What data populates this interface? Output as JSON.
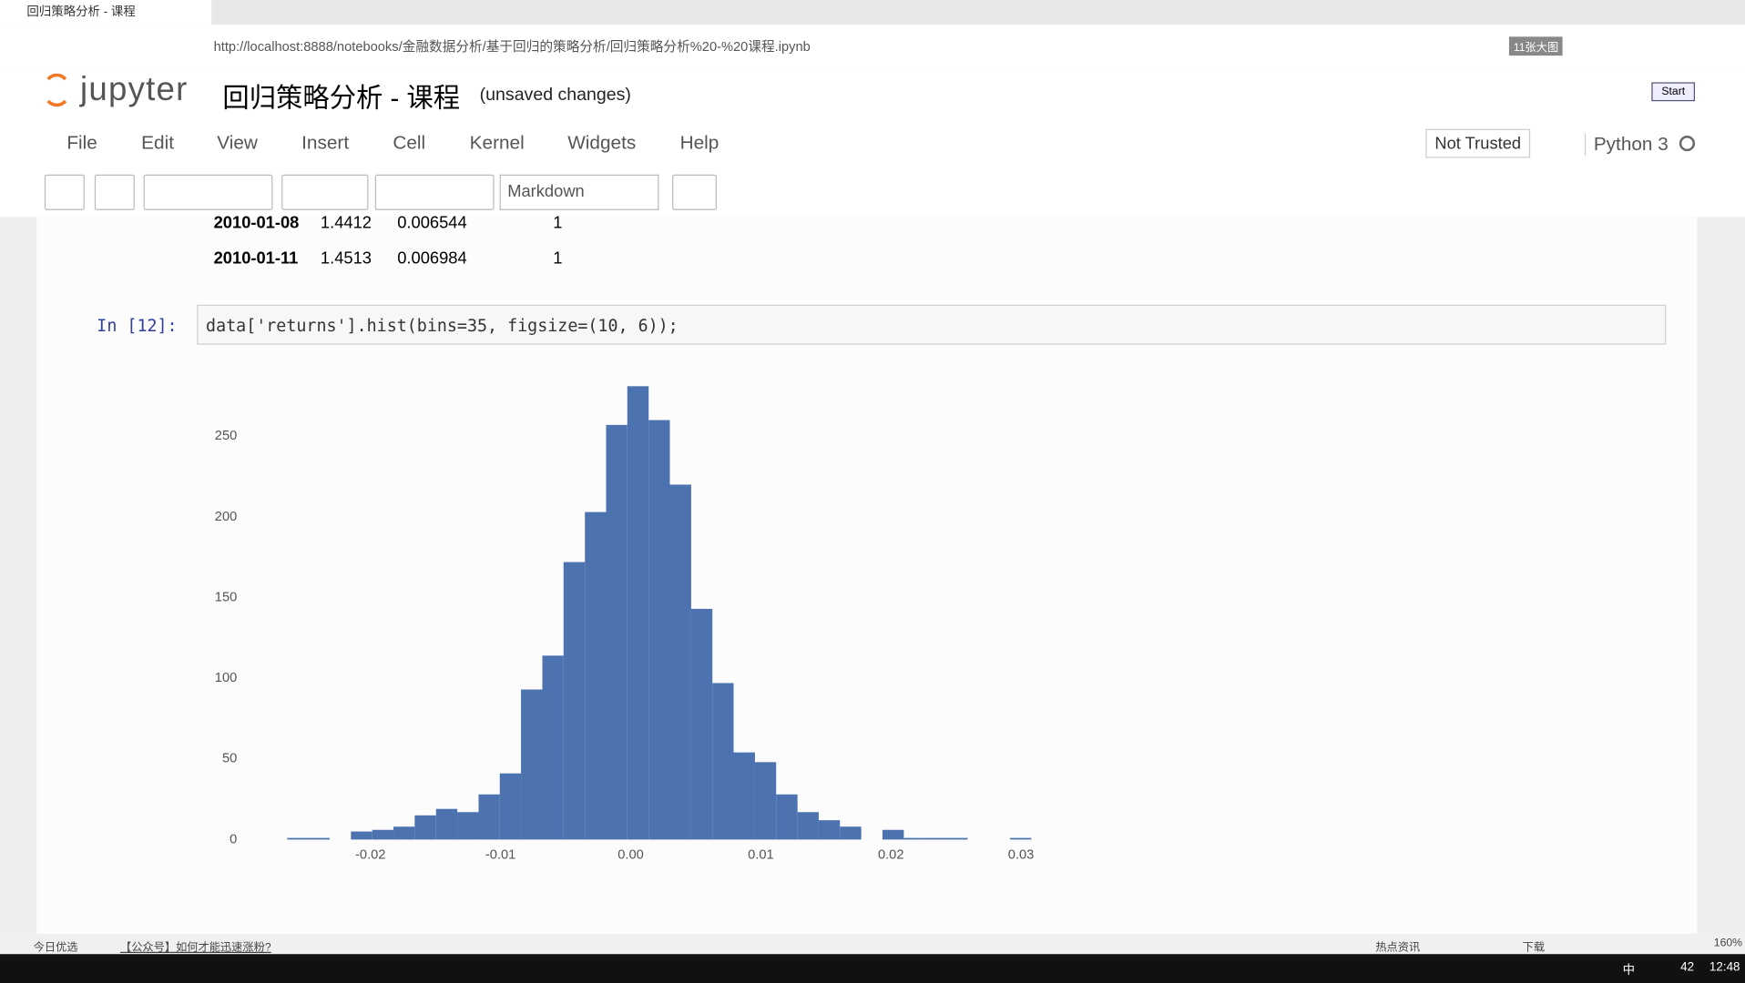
{
  "browser": {
    "tab_title": "回归策略分析 - 课程",
    "url": "http://localhost:8888/notebooks/金融数据分析/基于回归的策略分析/回归策略分析%20-%20课程.ipynb",
    "badge": "11张大图"
  },
  "header": {
    "logo": "jupyter",
    "title": "回归策略分析 - 课程",
    "status": "(unsaved changes)",
    "start_button": "Start"
  },
  "menu": [
    "File",
    "Edit",
    "View",
    "Insert",
    "Cell",
    "Kernel",
    "Widgets",
    "Help"
  ],
  "trust": "Not Trusted",
  "kernel": "Python 3",
  "cell_type": "Markdown",
  "output_table": {
    "rows": [
      [
        "2010-01-08",
        "1.4412",
        "0.006544",
        "1"
      ],
      [
        "2010-01-11",
        "1.4513",
        "0.006984",
        "1"
      ]
    ]
  },
  "cell": {
    "prompt": "In  [12]:",
    "code": "data['returns'].hist(bins=35, figsize=(10, 6));"
  },
  "chart_data": {
    "type": "histogram",
    "color": "#4c72b0",
    "grid": false,
    "bins": [
      -0.0264,
      -0.02477,
      -0.02313,
      -0.0215,
      -0.01986,
      -0.01823,
      -0.0166,
      -0.01496,
      -0.01333,
      -0.01169,
      -0.01006,
      -0.00843,
      -0.00679,
      -0.00516,
      -0.00352,
      -0.00189,
      -0.00026,
      0.00138,
      0.00301,
      0.00465,
      0.00628,
      0.00791,
      0.00955,
      0.01118,
      0.01282,
      0.01445,
      0.01608,
      0.01772,
      0.01935,
      0.02099,
      0.02262,
      0.02425,
      0.02589,
      0.02752,
      0.02916,
      0.03079
    ],
    "values": [
      1,
      1,
      0,
      5,
      6,
      8,
      15,
      19,
      17,
      28,
      41,
      93,
      114,
      172,
      203,
      257,
      281,
      260,
      220,
      143,
      97,
      54,
      48,
      28,
      17,
      12,
      8,
      0,
      6,
      1,
      1,
      1,
      0,
      0,
      1
    ],
    "xlim": [
      -0.0288,
      0.0315
    ],
    "ylim": [
      0,
      295
    ],
    "xticks": [
      -0.02,
      -0.01,
      {
        "value": 0,
        "label": "0.00"
      },
      0.01,
      0.02,
      0.03
    ],
    "yticks": [
      0,
      50,
      100,
      150,
      200,
      250
    ]
  },
  "status_bar": {
    "left": "今日优选",
    "link": "【公众号】如何才能迅速涨粉?",
    "news": "热点资讯",
    "download": "下载",
    "zoom": "160%"
  },
  "taskbar": {
    "ime": "中",
    "temp": "42",
    "time": "12:48"
  }
}
